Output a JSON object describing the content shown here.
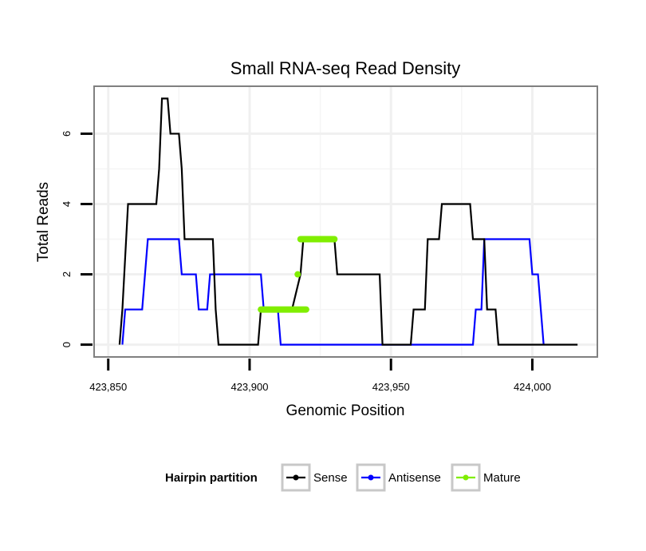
{
  "chart_data": {
    "type": "line",
    "title": "Small RNA-seq Read Density",
    "xlabel": "Genomic Position",
    "ylabel": "Total Reads",
    "xlim": [
      423845,
      424023
    ],
    "ylim": [
      -0.35,
      7.35
    ],
    "x_ticks": [
      423850,
      423900,
      423950,
      424000
    ],
    "x_tick_labels": [
      "423,850",
      "423,900",
      "423,950",
      "424,000"
    ],
    "y_ticks": [
      0,
      2,
      4,
      6
    ],
    "y_tick_labels": [
      "0",
      "2",
      "4",
      "6"
    ],
    "grid": true,
    "legend": {
      "title": "Hairpin partition",
      "position": "bottom",
      "entries": [
        "Sense",
        "Antisense",
        "Mature"
      ]
    },
    "series": [
      {
        "name": "Sense",
        "color": "#000000",
        "x": [
          423854,
          423855,
          423857,
          423867,
          423868,
          423869,
          423871,
          423872,
          423875,
          423876,
          423877,
          423887,
          423888,
          423889,
          423903,
          423904,
          423905,
          423915,
          423918,
          423919,
          423920,
          423930,
          423931,
          423946,
          423947,
          423957,
          423958,
          423962,
          423963,
          423967,
          423968,
          423970,
          423971,
          423978,
          423979,
          423983,
          423984,
          423987,
          423988,
          423989,
          424016
        ],
        "y": [
          0,
          1,
          4,
          4,
          5,
          7,
          7,
          6,
          6,
          5,
          3,
          3,
          1,
          0,
          0,
          1,
          1,
          1,
          2,
          3,
          3,
          3,
          2,
          2,
          0,
          0,
          1,
          1,
          3,
          3,
          4,
          4,
          4,
          4,
          3,
          3,
          1,
          1,
          0,
          0,
          0
        ]
      },
      {
        "name": "Antisense",
        "color": "#0000ff",
        "x": [
          423855,
          423856,
          423862,
          423864,
          423875,
          423876,
          423881,
          423882,
          423885,
          423886,
          423888,
          423904,
          423905,
          423910,
          423911,
          423979,
          423980,
          423982,
          423983,
          423999,
          424000,
          424002,
          424003,
          424004
        ],
        "y": [
          0,
          1,
          1,
          3,
          3,
          2,
          2,
          1,
          1,
          2,
          2,
          2,
          1,
          1,
          0,
          0,
          1,
          1,
          3,
          3,
          2,
          2,
          1,
          0
        ]
      },
      {
        "name": "Mature",
        "color": "#80ee00",
        "segments": [
          {
            "x": [
              423904,
              423920
            ],
            "y": [
              1,
              1
            ]
          },
          {
            "x": [
              423917,
              423917
            ],
            "y": [
              2,
              2
            ]
          },
          {
            "x": [
              423918,
              423930
            ],
            "y": [
              3,
              3
            ]
          }
        ]
      }
    ]
  }
}
